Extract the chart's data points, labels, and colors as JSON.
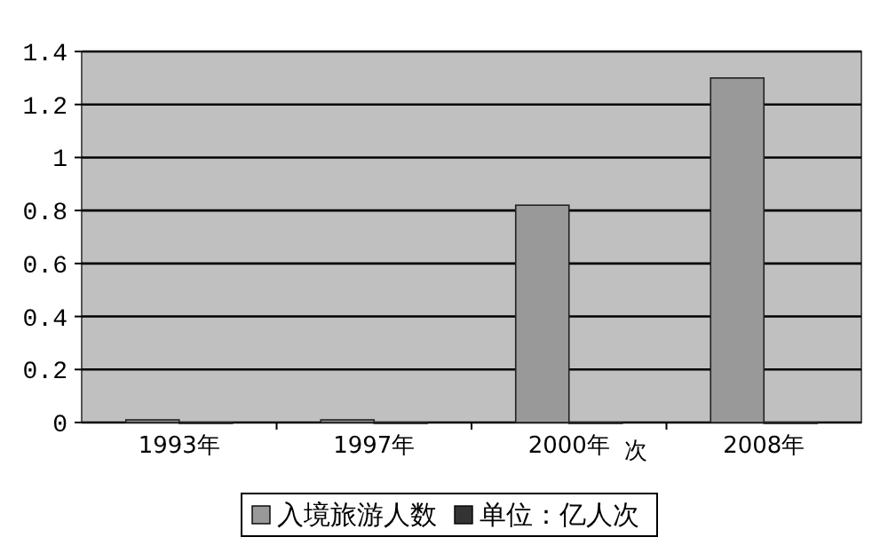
{
  "chart_data": {
    "type": "bar",
    "categories": [
      "1993年",
      "1997年",
      "2000年",
      "2008年"
    ],
    "series": [
      {
        "name": "入境旅游人数",
        "color": "#999999",
        "values": [
          0.01,
          0.01,
          0.82,
          1.3
        ]
      },
      {
        "name": "单位：亿人次",
        "color": "#333333",
        "values": [
          0,
          0,
          0,
          0
        ]
      }
    ],
    "ylim": [
      0,
      1.4
    ],
    "yticks": [
      0,
      0.2,
      0.4,
      0.6,
      0.8,
      1,
      1.2,
      1.4
    ],
    "grid": "y",
    "legend": "bottom",
    "annotations": [
      "次"
    ]
  }
}
